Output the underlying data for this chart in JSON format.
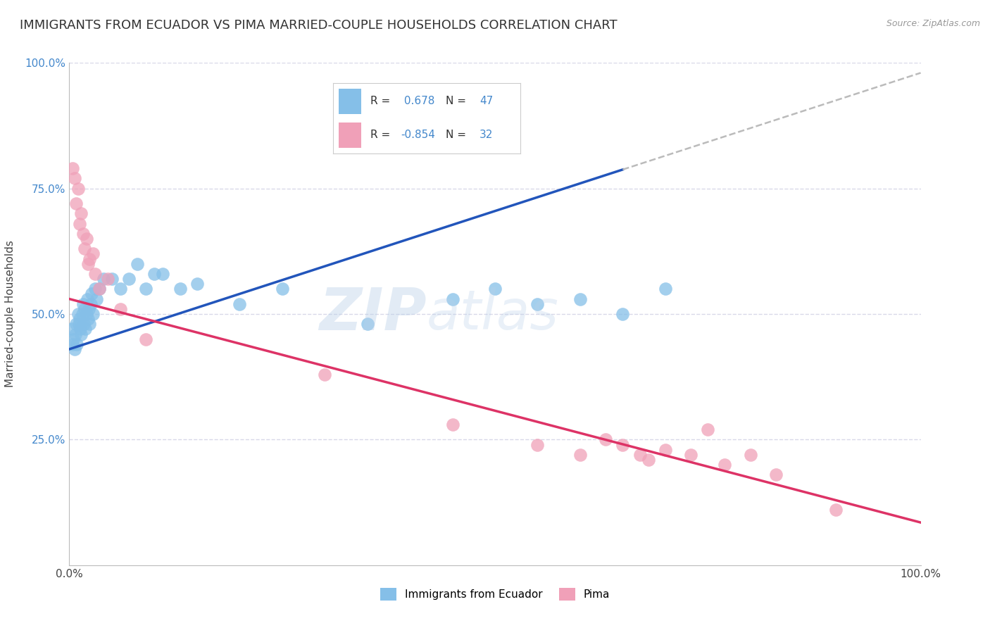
{
  "title": "IMMIGRANTS FROM ECUADOR VS PIMA MARRIED-COUPLE HOUSEHOLDS CORRELATION CHART",
  "source": "Source: ZipAtlas.com",
  "ylabel": "Married-couple Households",
  "watermark": "ZIPatlas",
  "blue_color": "#85bfe8",
  "pink_color": "#f0a0b8",
  "blue_line_color": "#2255bb",
  "pink_line_color": "#dd3366",
  "dash_color": "#bbbbbb",
  "blue_scatter_x": [
    0.3,
    0.4,
    0.5,
    0.6,
    0.7,
    0.8,
    0.9,
    1.0,
    1.1,
    1.2,
    1.3,
    1.4,
    1.5,
    1.6,
    1.7,
    1.8,
    1.9,
    2.0,
    2.1,
    2.2,
    2.3,
    2.4,
    2.5,
    2.6,
    2.8,
    3.0,
    3.2,
    3.5,
    4.0,
    5.0,
    6.0,
    7.0,
    8.0,
    9.0,
    10.0,
    11.0,
    13.0,
    15.0,
    20.0,
    25.0,
    35.0,
    45.0,
    50.0,
    55.0,
    60.0,
    65.0,
    70.0
  ],
  "blue_scatter_y": [
    47.0,
    44.0,
    45.0,
    43.0,
    46.0,
    48.0,
    44.0,
    50.0,
    48.0,
    49.0,
    47.0,
    46.0,
    50.0,
    52.0,
    48.0,
    51.0,
    47.0,
    50.0,
    53.0,
    49.0,
    51.0,
    48.0,
    52.0,
    54.0,
    50.0,
    55.0,
    53.0,
    55.0,
    57.0,
    57.0,
    55.0,
    57.0,
    60.0,
    55.0,
    58.0,
    58.0,
    55.0,
    56.0,
    52.0,
    55.0,
    48.0,
    53.0,
    55.0,
    52.0,
    53.0,
    50.0,
    55.0
  ],
  "pink_scatter_x": [
    0.4,
    0.6,
    0.8,
    1.0,
    1.2,
    1.4,
    1.6,
    1.8,
    2.0,
    2.2,
    2.4,
    2.8,
    3.0,
    3.5,
    4.5,
    6.0,
    9.0,
    30.0,
    45.0,
    55.0,
    60.0,
    63.0,
    65.0,
    67.0,
    68.0,
    70.0,
    73.0,
    75.0,
    77.0,
    80.0,
    83.0,
    90.0
  ],
  "pink_scatter_y": [
    79.0,
    77.0,
    72.0,
    75.0,
    68.0,
    70.0,
    66.0,
    63.0,
    65.0,
    60.0,
    61.0,
    62.0,
    58.0,
    55.0,
    57.0,
    51.0,
    45.0,
    38.0,
    28.0,
    24.0,
    22.0,
    25.0,
    24.0,
    22.0,
    21.0,
    23.0,
    22.0,
    27.0,
    20.0,
    22.0,
    18.0,
    11.0
  ],
  "blue_line_x0": 0.0,
  "blue_line_y0": 43.0,
  "blue_line_x1": 100.0,
  "blue_line_y1": 98.0,
  "blue_solid_x1": 65.0,
  "pink_line_x0": 0.0,
  "pink_line_y0": 53.0,
  "pink_line_x1": 100.0,
  "pink_line_y1": 8.5,
  "xlim": [
    0.0,
    100.0
  ],
  "ylim": [
    0.0,
    100.0
  ],
  "ytick_positions": [
    25,
    50,
    75,
    100
  ],
  "ytick_labels": [
    "25.0%",
    "50.0%",
    "75.0%",
    "100.0%"
  ],
  "xtick_positions": [
    0,
    100
  ],
  "xtick_labels": [
    "0.0%",
    "100.0%"
  ],
  "grid_color": "#d8d8e8",
  "background_color": "#ffffff",
  "watermark_color": "#b8cfe8",
  "title_fontsize": 13,
  "axis_label_fontsize": 11,
  "tick_fontsize": 11,
  "legend_r1": "R = ",
  "legend_v1": " 0.678",
  "legend_n1_label": "N = ",
  "legend_n1_val": "47",
  "legend_r2": "R = ",
  "legend_v2": "-0.854",
  "legend_n2_label": "N = ",
  "legend_n2_val": "32",
  "bottom_legend_label1": "Immigrants from Ecuador",
  "bottom_legend_label2": "Pima"
}
